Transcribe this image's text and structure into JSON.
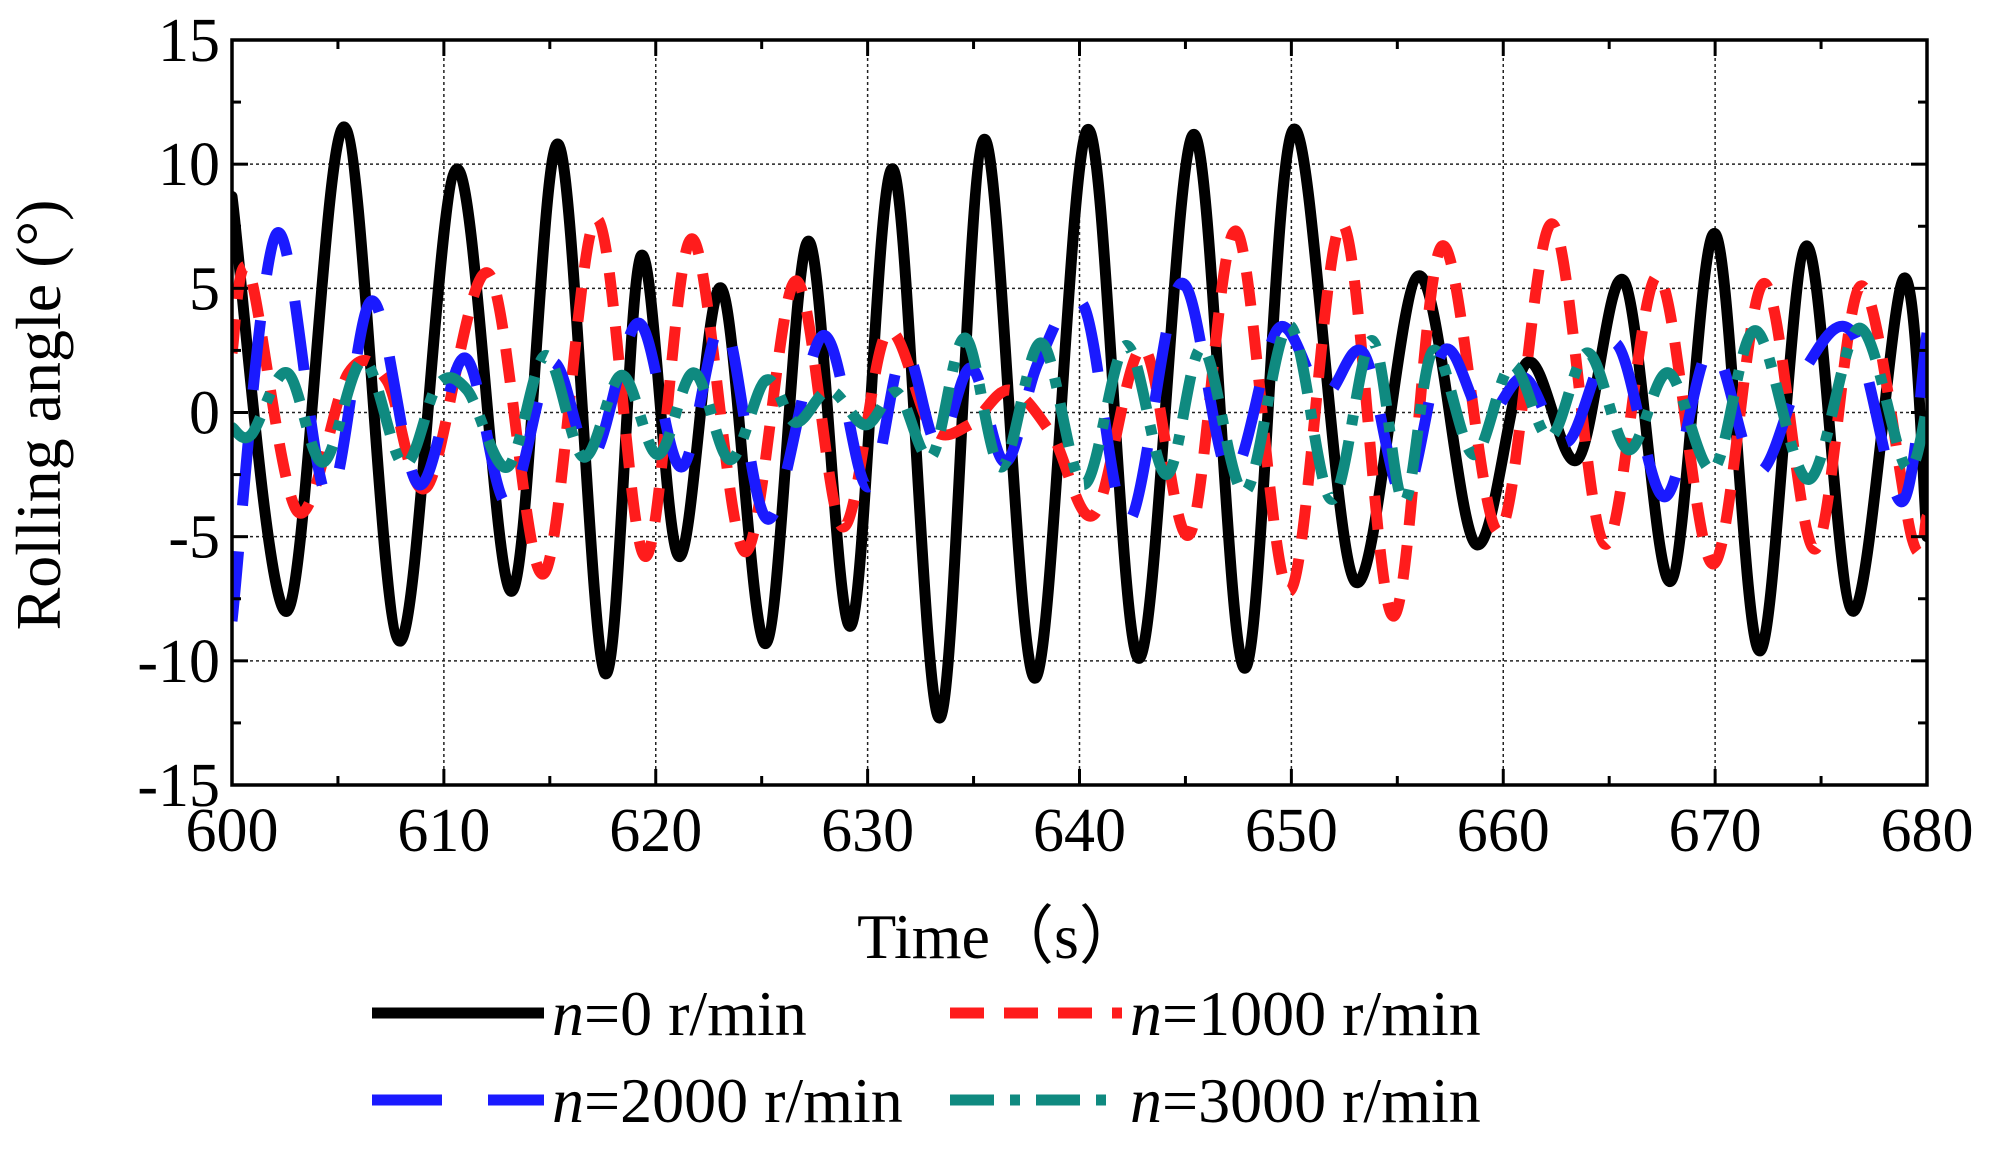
{
  "chart_data": {
    "type": "line",
    "title": "",
    "xlabel": "Time（s）",
    "ylabel": "Rolling angle (°)",
    "xlim": [
      600,
      680
    ],
    "ylim": [
      -15,
      15
    ],
    "xticks": [
      600,
      610,
      620,
      630,
      640,
      650,
      660,
      670,
      680
    ],
    "yticks": [
      -15,
      -10,
      -5,
      0,
      5,
      10,
      15
    ],
    "xtick_labels": [
      "600",
      "610",
      "620",
      "630",
      "640",
      "650",
      "660",
      "670",
      "680"
    ],
    "ytick_labels": [
      "-15",
      "-10",
      "-5",
      "0",
      "5",
      "10",
      "15"
    ],
    "grid": true,
    "legend_position": "below",
    "series": [
      {
        "name": "n=0 r/min",
        "legend_var": "n",
        "legend_rest": "=0 r/min",
        "color": "#000000",
        "dash": "solid",
        "x": [
          600.0,
          602.6,
          605.3,
          607.9,
          610.6,
          613.2,
          615.4,
          617.6,
          619.3,
          621.1,
          623.1,
          625.2,
          627.2,
          629.2,
          631.2,
          633.4,
          635.5,
          637.9,
          640.4,
          642.8,
          645.4,
          647.8,
          650.1,
          653.0,
          656.0,
          658.7,
          661.1,
          663.5,
          665.7,
          667.9,
          670.0,
          672.1,
          674.3,
          676.5,
          678.9,
          680.0
        ],
        "values": [
          8.7,
          -8.0,
          11.5,
          -9.2,
          9.8,
          -7.2,
          10.8,
          -10.5,
          6.3,
          -5.8,
          5.0,
          -9.3,
          6.9,
          -8.6,
          9.8,
          -12.3,
          11.0,
          -10.7,
          11.4,
          -9.9,
          11.2,
          -10.3,
          11.4,
          -6.8,
          5.5,
          -5.3,
          2.0,
          -1.9,
          5.3,
          -6.8,
          7.2,
          -9.6,
          6.7,
          -8.0,
          5.4,
          -5.0
        ]
      },
      {
        "name": "n=1000 r/min",
        "legend_var": "n",
        "legend_rest": "=1000 r/min",
        "color": "#ff1c1c",
        "dash": "dash",
        "x": [
          600.0,
          600.8,
          603.1,
          605.5,
          607.3,
          609.2,
          612.1,
          614.7,
          617.2,
          619.5,
          621.7,
          624.2,
          626.6,
          628.8,
          630.9,
          633.0,
          634.8,
          636.7,
          638.7,
          640.7,
          643.0,
          645.2,
          647.4,
          649.9,
          652.4,
          654.8,
          657.1,
          659.8,
          662.3,
          664.8,
          667.3,
          669.9,
          672.3,
          674.7,
          676.9,
          679.3,
          680.0
        ],
        "values": [
          2.4,
          5.7,
          -4.0,
          1.6,
          1.3,
          -3.0,
          5.6,
          -6.5,
          7.8,
          -5.8,
          7.0,
          -5.6,
          5.3,
          -4.6,
          3.2,
          -0.6,
          -0.5,
          0.9,
          -0.9,
          -4.1,
          2.6,
          -4.9,
          7.3,
          -7.2,
          7.6,
          -8.2,
          6.7,
          -4.8,
          7.6,
          -5.3,
          5.5,
          -6.1,
          5.2,
          -5.5,
          5.1,
          -5.1,
          -4.2
        ]
      },
      {
        "name": "n=2000 r/min",
        "legend_var": "n",
        "legend_rest": "=2000 r/min",
        "color": "#1a1aff",
        "dash": "longdash",
        "x": [
          600.0,
          602.1,
          604.5,
          606.6,
          608.8,
          611.0,
          613.0,
          615.1,
          617.0,
          619.2,
          621.2,
          623.2,
          625.3,
          627.9,
          630.0,
          631.7,
          633.3,
          634.9,
          636.5,
          638.1,
          640.2,
          642.3,
          644.8,
          647.1,
          649.4,
          651.5,
          653.4,
          655.3,
          657.2,
          659.1,
          661.0,
          663.0,
          665.3,
          667.6,
          669.8,
          672.0,
          674.2,
          676.5,
          678.8,
          680.0
        ],
        "values": [
          -8.4,
          7.2,
          -3.4,
          4.5,
          -2.9,
          2.2,
          -3.7,
          2.0,
          -1.8,
          3.6,
          -2.2,
          3.6,
          -4.3,
          3.1,
          -3.0,
          2.5,
          -1.3,
          1.8,
          -2.0,
          2.1,
          4.3,
          -4.4,
          5.2,
          -2.5,
          3.4,
          0.7,
          2.4,
          -3.4,
          2.5,
          -0.2,
          1.4,
          -1.2,
          2.8,
          -3.4,
          2.6,
          -2.4,
          1.7,
          3.2,
          -3.6,
          3.2
        ]
      },
      {
        "name": "n=3000 r/min",
        "legend_var": "n",
        "legend_rest": "=3000 r/min",
        "color": "#0f8a80",
        "dash": "dashdot",
        "x": [
          600.0,
          600.9,
          602.6,
          604.3,
          606.2,
          608.1,
          609.7,
          611.1,
          613.0,
          614.8,
          616.6,
          618.4,
          620.1,
          621.8,
          623.5,
          625.2,
          626.6,
          628.2,
          629.9,
          631.4,
          633.0,
          634.6,
          636.3,
          638.2,
          640.2,
          642.2,
          644.1,
          645.8,
          647.8,
          649.9,
          651.9,
          653.8,
          655.3,
          656.7,
          658.6,
          660.4,
          662.2,
          664.0,
          665.9,
          667.8,
          669.9,
          671.9,
          674.4,
          676.8,
          679.0,
          680.0
        ],
        "values": [
          -0.6,
          -0.9,
          1.6,
          -2.0,
          2.1,
          -2.1,
          1.1,
          0.9,
          -2.2,
          2.3,
          -1.8,
          1.5,
          -1.7,
          1.6,
          -1.9,
          1.3,
          -0.4,
          0.9,
          -0.5,
          0.8,
          -1.8,
          3.0,
          -2.2,
          2.8,
          -2.9,
          2.7,
          -2.5,
          2.6,
          -3.2,
          3.5,
          -3.5,
          2.9,
          -3.6,
          2.5,
          -1.7,
          1.9,
          -1.0,
          2.4,
          -1.5,
          1.6,
          -2.3,
          3.3,
          -2.7,
          3.4,
          -2.2,
          0.2
        ]
      }
    ]
  }
}
